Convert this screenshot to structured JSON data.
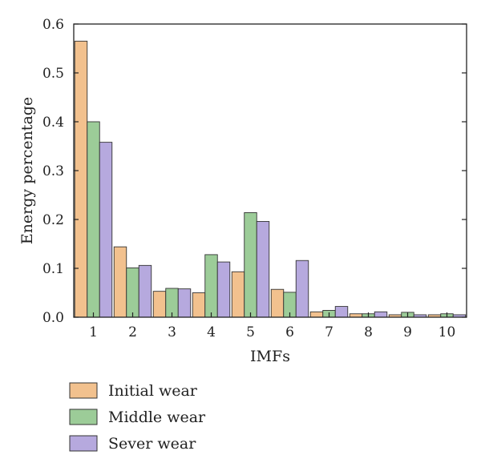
{
  "chart_data": {
    "type": "bar",
    "xlabel": "IMFs",
    "ylabel": "Energy percentage",
    "ylim": [
      0,
      0.6
    ],
    "yticks": [
      "0.0",
      "0.1",
      "0.2",
      "0.3",
      "0.4",
      "0.5",
      "0.6"
    ],
    "categories": [
      "1",
      "2",
      "3",
      "4",
      "5",
      "6",
      "7",
      "8",
      "9",
      "10"
    ],
    "series": [
      {
        "name": "Initial wear",
        "color": "#f2c18e",
        "values": [
          0.565,
          0.144,
          0.053,
          0.05,
          0.093,
          0.057,
          0.011,
          0.007,
          0.005,
          0.005
        ]
      },
      {
        "name": "Middle wear",
        "color": "#9ccc98",
        "values": [
          0.4,
          0.101,
          0.059,
          0.128,
          0.214,
          0.051,
          0.014,
          0.007,
          0.01,
          0.007
        ]
      },
      {
        "name": "Sever wear",
        "color": "#b6a9de",
        "values": [
          0.358,
          0.106,
          0.058,
          0.113,
          0.196,
          0.116,
          0.022,
          0.011,
          0.005,
          0.005
        ]
      }
    ],
    "grid": false,
    "legend_position": "bottom-left"
  }
}
